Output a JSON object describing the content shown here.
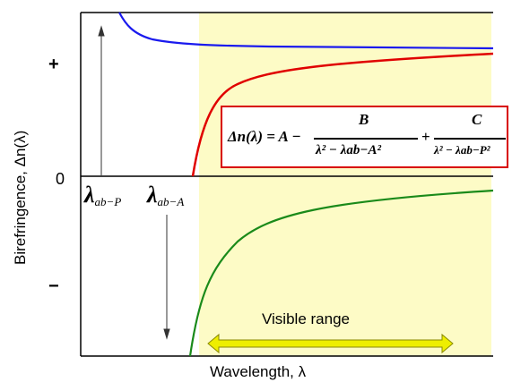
{
  "chart_data": {
    "type": "line",
    "xlabel": "Wavelength, λ",
    "ylabel": "Birefringence, Δn(λ)",
    "y_tick_labels": [
      "+",
      "0",
      "−"
    ],
    "x_markers": [
      {
        "label": "λ",
        "subscript": "ab−P"
      },
      {
        "label": "λ",
        "subscript": "ab−A"
      }
    ],
    "visible_range_label": "Visible range",
    "equation": {
      "lhs": "Δn(λ) = A −",
      "term1_numerator": "B",
      "term1_denominator": "λ² − λab−A²",
      "plus": "+",
      "term2_numerator": "C",
      "term2_denominator": "λ² − λab−P²"
    },
    "grid": false,
    "legend": "none",
    "series_colors": {
      "total": "#ff0000",
      "positive": "#1a1aee",
      "negative": "#1a8a1a",
      "visible_band": "#fdfbc6",
      "arrow": "#e8e800",
      "equation_border": "#d80000"
    }
  }
}
